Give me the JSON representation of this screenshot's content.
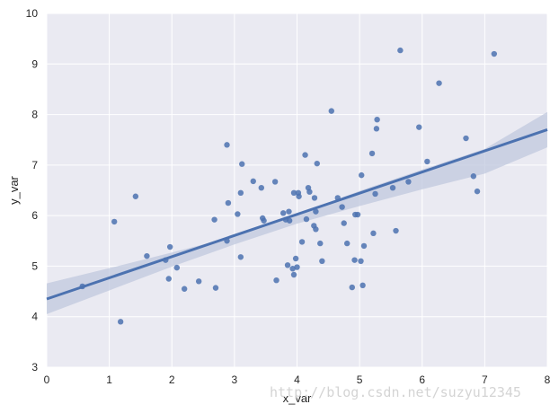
{
  "chart_data": {
    "type": "scatter",
    "title": "",
    "xlabel": "x_var",
    "ylabel": "y_var",
    "xlim": [
      0,
      8
    ],
    "ylim": [
      3,
      10
    ],
    "xticks": [
      "0",
      "1",
      "2",
      "3",
      "4",
      "5",
      "6",
      "7",
      "8"
    ],
    "yticks": [
      "3",
      "4",
      "5",
      "6",
      "7",
      "8",
      "9",
      "10"
    ],
    "grid": true,
    "points": [
      [
        0.57,
        4.6
      ],
      [
        1.08,
        5.88
      ],
      [
        1.18,
        3.9
      ],
      [
        1.42,
        6.38
      ],
      [
        1.6,
        5.2
      ],
      [
        1.9,
        5.12
      ],
      [
        1.95,
        4.75
      ],
      [
        1.97,
        5.38
      ],
      [
        2.08,
        4.97
      ],
      [
        2.2,
        4.55
      ],
      [
        2.43,
        4.7
      ],
      [
        2.68,
        5.92
      ],
      [
        2.7,
        4.57
      ],
      [
        2.88,
        5.5
      ],
      [
        2.88,
        7.4
      ],
      [
        2.9,
        6.25
      ],
      [
        3.05,
        6.03
      ],
      [
        3.1,
        6.45
      ],
      [
        3.12,
        7.02
      ],
      [
        3.1,
        5.18
      ],
      [
        3.3,
        6.68
      ],
      [
        3.43,
        6.55
      ],
      [
        3.45,
        5.95
      ],
      [
        3.47,
        5.9
      ],
      [
        3.65,
        6.67
      ],
      [
        3.67,
        4.72
      ],
      [
        3.78,
        6.05
      ],
      [
        3.82,
        5.92
      ],
      [
        3.85,
        5.02
      ],
      [
        3.87,
        6.08
      ],
      [
        3.88,
        5.9
      ],
      [
        3.93,
        4.95
      ],
      [
        3.95,
        6.45
      ],
      [
        3.95,
        4.83
      ],
      [
        3.98,
        5.15
      ],
      [
        4.0,
        4.98
      ],
      [
        4.02,
        6.45
      ],
      [
        4.03,
        6.38
      ],
      [
        4.08,
        5.48
      ],
      [
        4.13,
        7.2
      ],
      [
        4.15,
        5.93
      ],
      [
        4.18,
        6.55
      ],
      [
        4.2,
        6.47
      ],
      [
        4.27,
        5.8
      ],
      [
        4.28,
        6.35
      ],
      [
        4.3,
        6.08
      ],
      [
        4.3,
        5.73
      ],
      [
        4.32,
        7.03
      ],
      [
        4.37,
        5.45
      ],
      [
        4.4,
        5.1
      ],
      [
        4.55,
        8.07
      ],
      [
        4.65,
        6.35
      ],
      [
        4.72,
        6.17
      ],
      [
        4.75,
        5.85
      ],
      [
        4.8,
        5.45
      ],
      [
        4.88,
        4.58
      ],
      [
        4.92,
        5.12
      ],
      [
        4.93,
        6.02
      ],
      [
        4.97,
        6.02
      ],
      [
        5.02,
        5.1
      ],
      [
        5.03,
        6.8
      ],
      [
        5.05,
        4.62
      ],
      [
        5.07,
        5.4
      ],
      [
        5.2,
        7.23
      ],
      [
        5.22,
        5.65
      ],
      [
        5.25,
        6.43
      ],
      [
        5.27,
        7.72
      ],
      [
        5.28,
        7.9
      ],
      [
        5.53,
        6.55
      ],
      [
        5.58,
        5.7
      ],
      [
        5.65,
        9.27
      ],
      [
        5.78,
        6.67
      ],
      [
        5.95,
        7.75
      ],
      [
        6.08,
        7.07
      ],
      [
        6.27,
        8.62
      ],
      [
        6.7,
        7.53
      ],
      [
        6.82,
        6.78
      ],
      [
        6.88,
        6.48
      ],
      [
        7.15,
        9.2
      ]
    ],
    "regression": {
      "x": [
        0,
        8
      ],
      "y": [
        4.35,
        7.7
      ]
    },
    "ci_band": {
      "x": [
        0,
        1,
        2,
        3,
        4,
        5,
        6,
        7,
        8
      ],
      "lower": [
        4.05,
        4.52,
        4.99,
        5.43,
        5.84,
        6.19,
        6.52,
        6.83,
        7.35
      ],
      "upper": [
        4.66,
        4.96,
        5.27,
        5.59,
        6.02,
        6.49,
        6.91,
        7.32,
        8.05
      ]
    },
    "colors": {
      "background": "#eaeaf2",
      "grid": "#ffffff",
      "points": "#4c72b0",
      "line": "#4c72b0",
      "band": "#c0c8de"
    }
  },
  "watermark": "http://blog.csdn.net/suzyu12345"
}
